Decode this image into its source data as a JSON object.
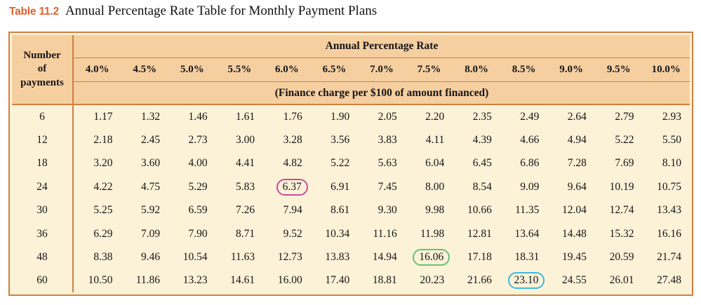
{
  "title": {
    "tag": "Table 11.2",
    "text": "Annual Percentage Rate Table for Monthly Payment Plans"
  },
  "table": {
    "corner_header_lines": [
      "Number",
      "of",
      "payments"
    ],
    "group_header": "Annual Percentage Rate",
    "sub_header": "(Finance charge per $100 of amount financed)",
    "rate_headers": [
      "4.0%",
      "4.5%",
      "5.0%",
      "5.5%",
      "6.0%",
      "6.5%",
      "7.0%",
      "7.5%",
      "8.0%",
      "8.5%",
      "9.0%",
      "9.5%",
      "10.0%"
    ],
    "rows": [
      {
        "payments": "6",
        "values": [
          "1.17",
          "1.32",
          "1.46",
          "1.61",
          "1.76",
          "1.90",
          "2.05",
          "2.20",
          "2.35",
          "2.49",
          "2.64",
          "2.79",
          "2.93"
        ]
      },
      {
        "payments": "12",
        "values": [
          "2.18",
          "2.45",
          "2.73",
          "3.00",
          "3.28",
          "3.56",
          "3.83",
          "4.11",
          "4.39",
          "4.66",
          "4.94",
          "5.22",
          "5.50"
        ]
      },
      {
        "payments": "18",
        "values": [
          "3.20",
          "3.60",
          "4.00",
          "4.41",
          "4.82",
          "5.22",
          "5.63",
          "6.04",
          "6.45",
          "6.86",
          "7.28",
          "7.69",
          "8.10"
        ]
      },
      {
        "payments": "24",
        "values": [
          "4.22",
          "4.75",
          "5.29",
          "5.83",
          "6.37",
          "6.91",
          "7.45",
          "8.00",
          "8.54",
          "9.09",
          "9.64",
          "10.19",
          "10.75"
        ]
      },
      {
        "payments": "30",
        "values": [
          "5.25",
          "5.92",
          "6.59",
          "7.26",
          "7.94",
          "8.61",
          "9.30",
          "9.98",
          "10.66",
          "11.35",
          "12.04",
          "12.74",
          "13.43"
        ]
      },
      {
        "payments": "36",
        "values": [
          "6.29",
          "7.09",
          "7.90",
          "8.71",
          "9.52",
          "10.34",
          "11.16",
          "11.98",
          "12.81",
          "13.64",
          "14.48",
          "15.32",
          "16.16"
        ]
      },
      {
        "payments": "48",
        "values": [
          "8.38",
          "9.46",
          "10.54",
          "11.63",
          "12.73",
          "13.83",
          "14.94",
          "16.06",
          "17.18",
          "18.31",
          "19.45",
          "20.59",
          "21.74"
        ]
      },
      {
        "payments": "60",
        "values": [
          "10.50",
          "11.86",
          "13.23",
          "14.61",
          "16.00",
          "17.40",
          "18.81",
          "20.23",
          "21.66",
          "23.10",
          "24.55",
          "26.01",
          "27.48"
        ]
      }
    ],
    "highlights": [
      {
        "row_index": 3,
        "col_index": 4,
        "color": "#cc4b9b",
        "name": "pink-circle-highlight"
      },
      {
        "row_index": 6,
        "col_index": 7,
        "color": "#67c173",
        "name": "green-circle-highlight"
      },
      {
        "row_index": 7,
        "col_index": 9,
        "color": "#3fb9de",
        "name": "blue-circle-highlight"
      }
    ],
    "colors": {
      "frame_border": "#d0803f",
      "header_background": "#f6cfa1",
      "body_background": "#fcf2d8",
      "title_accent": "#e0612e"
    }
  }
}
